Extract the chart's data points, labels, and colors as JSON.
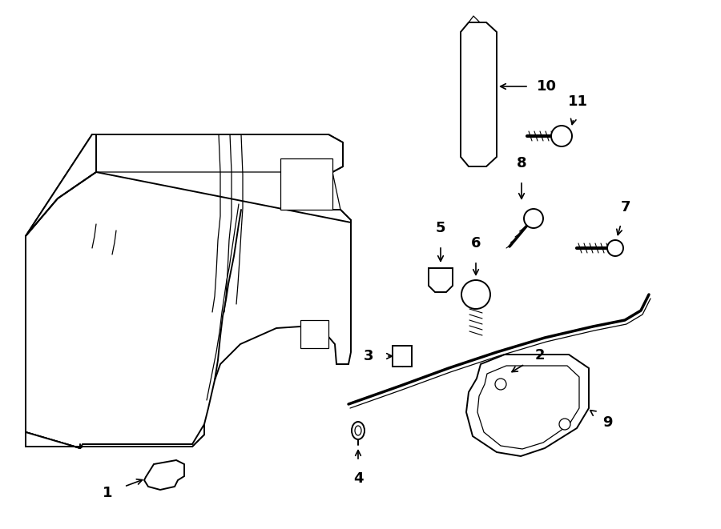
{
  "bg_color": "#ffffff",
  "line_color": "#000000",
  "lw": 1.4,
  "lw_thin": 0.9,
  "fig_width": 9.0,
  "fig_height": 6.61,
  "dpi": 100
}
